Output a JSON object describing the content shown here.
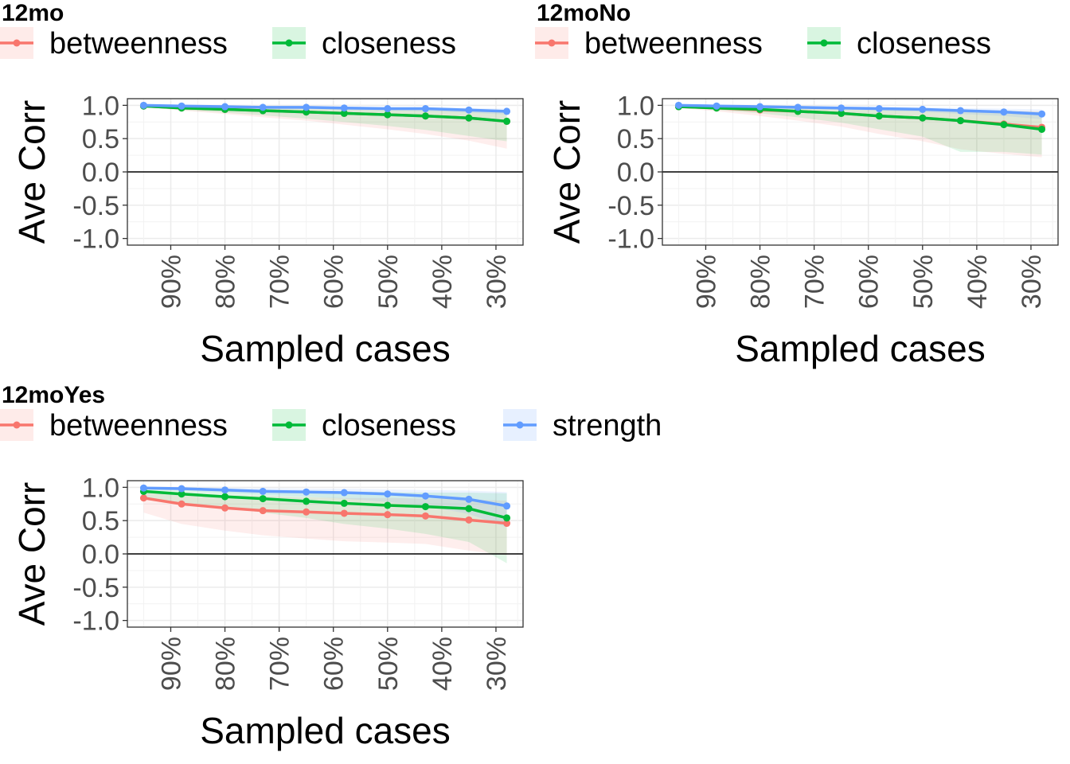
{
  "chart_data": [
    {
      "type": "line",
      "title": "12mo",
      "legend": [
        "betweenness",
        "closeness"
      ],
      "legend_placement": "top",
      "xlabel": "Sampled cases",
      "ylabel": "Ave Corr",
      "ylim": [
        -1.0,
        1.0
      ],
      "yticks": [
        "-1.0",
        "-0.5",
        "0.0",
        "0.5",
        "1.0"
      ],
      "xticks": [
        "90%",
        "80%",
        "70%",
        "60%",
        "50%",
        "40%",
        "30%"
      ],
      "x": [
        95,
        88,
        80,
        73,
        65,
        58,
        50,
        43,
        35,
        28
      ],
      "series": [
        {
          "name": "betweenness",
          "color": "#F8766D",
          "values": [
            0.99,
            0.96,
            0.94,
            0.92,
            0.9,
            0.88,
            0.86,
            0.84,
            0.81,
            0.76
          ],
          "lower": [
            0.98,
            0.92,
            0.87,
            0.82,
            0.77,
            0.71,
            0.64,
            0.57,
            0.47,
            0.35
          ],
          "upper": [
            1.0,
            0.99,
            0.98,
            0.97,
            0.96,
            0.95,
            0.94,
            0.93,
            0.92,
            0.9
          ]
        },
        {
          "name": "closeness",
          "color": "#00BA38",
          "values": [
            0.99,
            0.96,
            0.94,
            0.92,
            0.9,
            0.88,
            0.86,
            0.84,
            0.81,
            0.76
          ],
          "lower": [
            0.98,
            0.93,
            0.89,
            0.85,
            0.8,
            0.75,
            0.69,
            0.63,
            0.54,
            0.46
          ],
          "upper": [
            1.0,
            0.99,
            0.98,
            0.97,
            0.96,
            0.95,
            0.94,
            0.93,
            0.92,
            0.91
          ]
        },
        {
          "name": "strength",
          "color": "#619CFF",
          "values": [
            1.0,
            0.99,
            0.98,
            0.97,
            0.97,
            0.96,
            0.95,
            0.95,
            0.93,
            0.91
          ],
          "lower": [
            1.0,
            0.98,
            0.97,
            0.96,
            0.95,
            0.93,
            0.92,
            0.91,
            0.89,
            0.86
          ],
          "upper": [
            1.0,
            1.0,
            0.99,
            0.99,
            0.98,
            0.98,
            0.97,
            0.97,
            0.96,
            0.95
          ]
        }
      ],
      "grid": true
    },
    {
      "type": "line",
      "title": "12moNo",
      "legend": [
        "betweenness",
        "closeness"
      ],
      "legend_placement": "top",
      "xlabel": "Sampled cases",
      "ylabel": "Ave Corr",
      "ylim": [
        -1.0,
        1.0
      ],
      "yticks": [
        "-1.0",
        "-0.5",
        "0.0",
        "0.5",
        "1.0"
      ],
      "xticks": [
        "90%",
        "80%",
        "70%",
        "60%",
        "50%",
        "40%",
        "30%"
      ],
      "x": [
        95,
        88,
        80,
        73,
        65,
        58,
        50,
        43,
        35,
        28
      ],
      "series": [
        {
          "name": "betweenness",
          "color": "#F8766D",
          "values": [
            0.98,
            0.96,
            0.93,
            0.91,
            0.88,
            0.84,
            0.81,
            0.77,
            0.72,
            0.67
          ],
          "lower": [
            0.96,
            0.91,
            0.84,
            0.77,
            0.68,
            0.57,
            0.46,
            0.34,
            0.27,
            0.22
          ],
          "upper": [
            1.0,
            0.99,
            0.98,
            0.97,
            0.96,
            0.95,
            0.94,
            0.93,
            0.92,
            0.91
          ]
        },
        {
          "name": "closeness",
          "color": "#00BA38",
          "values": [
            0.98,
            0.96,
            0.94,
            0.91,
            0.88,
            0.84,
            0.81,
            0.77,
            0.71,
            0.64
          ],
          "lower": [
            0.97,
            0.93,
            0.88,
            0.82,
            0.74,
            0.64,
            0.53,
            0.3,
            0.3,
            0.26
          ],
          "upper": [
            1.0,
            0.99,
            0.98,
            0.97,
            0.96,
            0.95,
            0.94,
            0.93,
            0.92,
            0.9
          ]
        },
        {
          "name": "strength",
          "color": "#619CFF",
          "values": [
            1.0,
            0.99,
            0.98,
            0.97,
            0.96,
            0.95,
            0.94,
            0.92,
            0.9,
            0.87
          ],
          "lower": [
            1.0,
            0.98,
            0.97,
            0.96,
            0.94,
            0.92,
            0.9,
            0.87,
            0.84,
            0.79
          ],
          "upper": [
            1.0,
            1.0,
            0.99,
            0.99,
            0.98,
            0.98,
            0.97,
            0.96,
            0.95,
            0.94
          ]
        }
      ],
      "grid": true
    },
    {
      "type": "line",
      "title": "12moYes",
      "legend": [
        "betweenness",
        "closeness",
        "strength"
      ],
      "legend_placement": "top",
      "xlabel": "Sampled cases",
      "ylabel": "Ave Corr",
      "ylim": [
        -1.0,
        1.0
      ],
      "yticks": [
        "-1.0",
        "-0.5",
        "0.0",
        "0.5",
        "1.0"
      ],
      "xticks": [
        "90%",
        "80%",
        "70%",
        "60%",
        "50%",
        "40%",
        "30%"
      ],
      "x": [
        95,
        88,
        80,
        73,
        65,
        58,
        50,
        43,
        35,
        28
      ],
      "series": [
        {
          "name": "betweenness",
          "color": "#F8766D",
          "values": [
            0.84,
            0.75,
            0.69,
            0.65,
            0.63,
            0.61,
            0.59,
            0.57,
            0.51,
            0.46
          ],
          "lower": [
            0.62,
            0.45,
            0.35,
            0.28,
            0.23,
            0.19,
            0.17,
            0.15,
            0.05,
            -0.02
          ],
          "upper": [
            0.95,
            0.91,
            0.88,
            0.87,
            0.85,
            0.84,
            0.84,
            0.83,
            0.82,
            0.8
          ]
        },
        {
          "name": "closeness",
          "color": "#00BA38",
          "values": [
            0.94,
            0.9,
            0.86,
            0.83,
            0.79,
            0.76,
            0.73,
            0.71,
            0.68,
            0.54
          ],
          "lower": [
            0.86,
            0.77,
            0.7,
            0.62,
            0.54,
            0.45,
            0.38,
            0.3,
            0.18,
            -0.14
          ],
          "upper": [
            0.99,
            0.98,
            0.97,
            0.96,
            0.95,
            0.94,
            0.93,
            0.92,
            0.92,
            0.91
          ]
        },
        {
          "name": "strength",
          "color": "#619CFF",
          "values": [
            0.99,
            0.98,
            0.96,
            0.94,
            0.93,
            0.92,
            0.9,
            0.87,
            0.82,
            0.72
          ],
          "lower": [
            0.97,
            0.95,
            0.92,
            0.89,
            0.86,
            0.83,
            0.78,
            0.72,
            0.6,
            0.4
          ],
          "upper": [
            1.0,
            1.0,
            0.99,
            0.99,
            0.98,
            0.98,
            0.97,
            0.96,
            0.95,
            0.93
          ]
        }
      ],
      "grid": true
    }
  ]
}
